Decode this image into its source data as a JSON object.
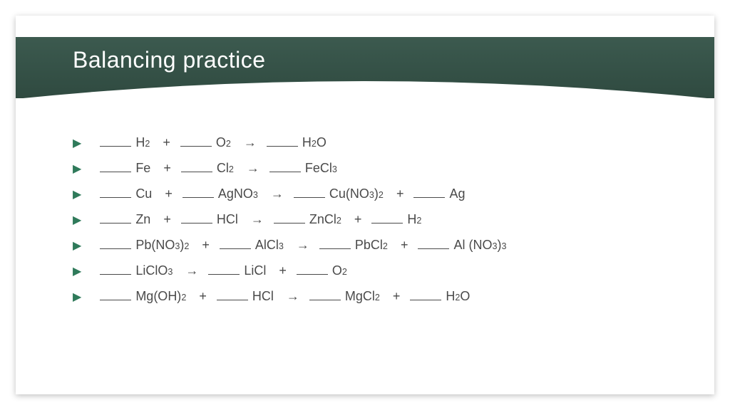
{
  "title": "Balancing practice",
  "colors": {
    "banner_top": "#3c5a4f",
    "banner_bottom": "#2f4a40",
    "bullet": "#2f7a5a",
    "text": "#4a4a4a",
    "background": "#ffffff",
    "blank_line": "#4a4a4a"
  },
  "typography": {
    "title_fontsize": 32,
    "title_weight": 300,
    "body_fontsize": 18
  },
  "equations": [
    {
      "terms": [
        {
          "blank": true,
          "formula": "H",
          "sub": "2"
        },
        {
          "op": "+"
        },
        {
          "blank": true,
          "formula": "O",
          "sub": "2"
        },
        {
          "op": "→"
        },
        {
          "blank": true,
          "formula": "H",
          "sub": "2",
          "tail": "O"
        }
      ]
    },
    {
      "terms": [
        {
          "blank": true,
          "formula": "Fe"
        },
        {
          "op": "+"
        },
        {
          "blank": true,
          "formula": "Cl",
          "sub": "2"
        },
        {
          "op": "→"
        },
        {
          "blank": true,
          "formula": "FeCl",
          "sub": "3"
        }
      ]
    },
    {
      "terms": [
        {
          "blank": true,
          "formula": "Cu"
        },
        {
          "op": "+"
        },
        {
          "blank": true,
          "formula": "AgNO",
          "sub": "3"
        },
        {
          "op": "→"
        },
        {
          "blank": true,
          "formula": "Cu(NO",
          "sub": "3",
          "tail": ")",
          "sub2": "2"
        },
        {
          "op": "+"
        },
        {
          "blank": true,
          "formula": "Ag"
        }
      ]
    },
    {
      "terms": [
        {
          "blank": true,
          "formula": "Zn"
        },
        {
          "op": "+"
        },
        {
          "blank": true,
          "formula": "HCl"
        },
        {
          "op": "→"
        },
        {
          "blank": true,
          "formula": "ZnCl",
          "sub": "2"
        },
        {
          "op": "+"
        },
        {
          "blank": true,
          "formula": "H",
          "sub": "2"
        }
      ]
    },
    {
      "terms": [
        {
          "blank": true,
          "formula": "Pb(NO",
          "sub": "3",
          "tail": ")",
          "sub2": "2"
        },
        {
          "op": "+"
        },
        {
          "blank": true,
          "formula": "AlCl",
          "sub": "3"
        },
        {
          "op": "→"
        },
        {
          "blank": true,
          "formula": "PbCl",
          "sub": "2"
        },
        {
          "op": "+"
        },
        {
          "blank": true,
          "formula": "Al (NO",
          "sub": "3",
          "tail": ")",
          "sub2": "3"
        }
      ]
    },
    {
      "terms": [
        {
          "blank": true,
          "formula": "LiClO",
          "sub": "3"
        },
        {
          "op": "→"
        },
        {
          "blank": true,
          "formula": "LiCl"
        },
        {
          "op": "+"
        },
        {
          "blank": true,
          "formula": "O",
          "sub": "2"
        }
      ]
    },
    {
      "terms": [
        {
          "blank": true,
          "formula": "Mg(OH)",
          "sub": "2"
        },
        {
          "op": "+"
        },
        {
          "blank": true,
          "formula": "HCl"
        },
        {
          "op": "→"
        },
        {
          "blank": true,
          "formula": "MgCl",
          "sub": "2"
        },
        {
          "op": "+"
        },
        {
          "blank": true,
          "formula": "H",
          "sub": "2",
          "tail": "O"
        }
      ]
    }
  ]
}
